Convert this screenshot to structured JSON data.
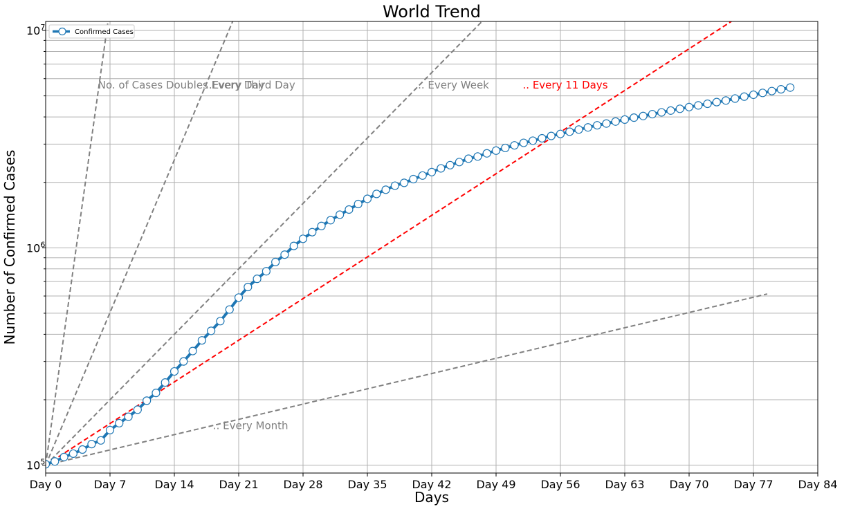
{
  "chart_data": {
    "type": "line",
    "title": "World Trend",
    "xlabel": "Days",
    "ylabel": "Number of Confirmed Cases",
    "yscale": "log",
    "xlim": [
      0,
      84
    ],
    "ylim": [
      92000,
      11000000
    ],
    "grid": true,
    "legend_position": "top-left",
    "x_ticks": [
      0,
      7,
      14,
      21,
      28,
      35,
      42,
      49,
      56,
      63,
      70,
      77,
      84
    ],
    "x_tick_labels": [
      "Day 0",
      "Day 7",
      "Day 14",
      "Day 21",
      "Day 28",
      "Day 35",
      "Day 42",
      "Day 49",
      "Day 56",
      "Day 63",
      "Day 70",
      "Day 77",
      "Day 84"
    ],
    "y_ticks": [
      100000,
      1000000,
      10000000
    ],
    "y_tick_bases": [
      "10",
      "10",
      "10"
    ],
    "y_tick_exponents": [
      "5",
      "6",
      "7"
    ],
    "series": [
      {
        "name": "Confirmed Cases",
        "color": "#1f77b4",
        "x": [
          0,
          1,
          2,
          3,
          4,
          5,
          6,
          7,
          8,
          9,
          10,
          11,
          12,
          13,
          14,
          15,
          16,
          17,
          18,
          19,
          20,
          21,
          22,
          23,
          24,
          25,
          26,
          27,
          28,
          29,
          30,
          31,
          32,
          33,
          34,
          35,
          36,
          37,
          38,
          39,
          40,
          41,
          42,
          43,
          44,
          45,
          46,
          47,
          48,
          49,
          50,
          51,
          52,
          53,
          54,
          55,
          56,
          57,
          58,
          59,
          60,
          61,
          62,
          63,
          64,
          65,
          66,
          67,
          68,
          69,
          70,
          71,
          72,
          73,
          74,
          75,
          76,
          77,
          78,
          79,
          80,
          81
        ],
        "y": [
          101000,
          104000,
          109000,
          113000,
          118000,
          125000,
          130000,
          145000,
          156000,
          167000,
          180000,
          198000,
          215000,
          240000,
          270000,
          300000,
          335000,
          375000,
          415000,
          460000,
          520000,
          590000,
          660000,
          720000,
          780000,
          860000,
          930000,
          1020000,
          1100000,
          1180000,
          1260000,
          1340000,
          1420000,
          1500000,
          1590000,
          1680000,
          1770000,
          1850000,
          1930000,
          1990000,
          2070000,
          2150000,
          2230000,
          2320000,
          2400000,
          2480000,
          2570000,
          2630000,
          2720000,
          2800000,
          2880000,
          2960000,
          3040000,
          3110000,
          3190000,
          3270000,
          3340000,
          3420000,
          3500000,
          3580000,
          3660000,
          3730000,
          3810000,
          3890000,
          3970000,
          4040000,
          4120000,
          4200000,
          4280000,
          4360000,
          4440000,
          4520000,
          4600000,
          4680000,
          4760000,
          4860000,
          4960000,
          5060000,
          5160000,
          5260000,
          5360000,
          5460000
        ]
      }
    ],
    "reference_lines": [
      {
        "label": "No. of Cases Doubles Every Day",
        "doubling_days": 1,
        "color": "#808080",
        "label_x": 5.7,
        "label_y": 5600000
      },
      {
        "label": "..Every Third Day",
        "doubling_days": 3,
        "color": "#808080",
        "label_x": 17.4,
        "label_y": 5600000
      },
      {
        "label": ".. Every Week",
        "doubling_days": 7,
        "color": "#808080",
        "label_x": 40.5,
        "label_y": 5600000
      },
      {
        "label": ".. Every 11 Days",
        "doubling_days": 11,
        "color": "#ff0000",
        "label_x": 51.9,
        "label_y": 5600000
      },
      {
        "label": ".. Every Month",
        "doubling_days": 30,
        "color": "#808080",
        "label_x": 18.2,
        "label_y": 152000
      }
    ],
    "reference_start": 100000,
    "reference_x_max": 78.5
  }
}
